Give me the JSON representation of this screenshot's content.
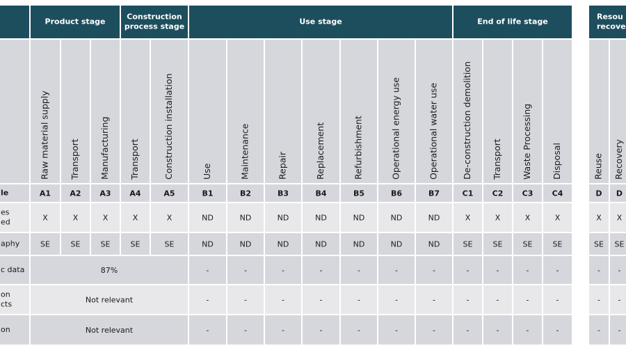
{
  "row_labels": {
    "code": [
      "le"
    ],
    "declared": [
      "es",
      "ed"
    ],
    "geography": [
      "aphy"
    ],
    "specific": [
      "c data"
    ],
    "products": [
      "on",
      "cts"
    ],
    "sites": [
      "on"
    ]
  },
  "groups": [
    {
      "title": [
        "Product stage"
      ],
      "columns": [
        {
          "name": "Raw material supply",
          "code": "A1",
          "declared": "X",
          "geography": "SE"
        },
        {
          "name": "Transport",
          "code": "A2",
          "declared": "X",
          "geography": "SE"
        },
        {
          "name": "Manufacturing",
          "code": "A3",
          "declared": "X",
          "geography": "SE"
        }
      ]
    },
    {
      "title": [
        "Construction",
        "process stage"
      ],
      "columns": [
        {
          "name": "Transport",
          "code": "A4",
          "declared": "X",
          "geography": "SE"
        },
        {
          "name": "Construction installation",
          "code": "A5",
          "declared": "X",
          "geography": "SE"
        }
      ]
    },
    {
      "title": [
        "Use stage"
      ],
      "columns": [
        {
          "name": "Use",
          "code": "B1",
          "declared": "ND",
          "geography": "ND"
        },
        {
          "name": "Maintenance",
          "code": "B2",
          "declared": "ND",
          "geography": "ND"
        },
        {
          "name": "Repair",
          "code": "B3",
          "declared": "ND",
          "geography": "ND"
        },
        {
          "name": "Replacement",
          "code": "B4",
          "declared": "ND",
          "geography": "ND"
        },
        {
          "name": "Refurbishment",
          "code": "B5",
          "declared": "ND",
          "geography": "ND"
        },
        {
          "name": "Operational energy use",
          "code": "B6",
          "declared": "ND",
          "geography": "ND"
        },
        {
          "name": "Operational water use",
          "code": "B7",
          "declared": "ND",
          "geography": "ND"
        }
      ]
    },
    {
      "title": [
        "End of life stage"
      ],
      "columns": [
        {
          "name": "De-construction demolition",
          "code": "C1",
          "declared": "X",
          "geography": "SE"
        },
        {
          "name": "Transport",
          "code": "C2",
          "declared": "X",
          "geography": "SE"
        },
        {
          "name": "Waste Processing",
          "code": "C3",
          "declared": "X",
          "geography": "SE"
        },
        {
          "name": "Disposal",
          "code": "C4",
          "declared": "X",
          "geography": "SE"
        }
      ]
    },
    {
      "title": [
        "Resou",
        "recovery"
      ],
      "columns": [
        {
          "name": "Reuse",
          "code": "D",
          "declared": "X",
          "geography": "SE"
        },
        {
          "name": "Recovery",
          "code": "D",
          "declared": "X",
          "geography": "SE"
        }
      ]
    }
  ],
  "merged_rows": {
    "specific": {
      "merged": "87%",
      "cells": [
        "-",
        "-",
        "-",
        "-",
        "-",
        "-",
        "-",
        "-",
        "-",
        "-",
        "-",
        "-",
        "-"
      ]
    },
    "products": {
      "merged": "Not relevant",
      "cells": [
        "-",
        "-",
        "-",
        "-",
        "-",
        "-",
        "-",
        "-",
        "-",
        "-",
        "-",
        "-",
        "-"
      ]
    },
    "sites": {
      "merged": "Not relevant",
      "cells": [
        "-",
        "-",
        "-",
        "-",
        "-",
        "-",
        "-",
        "-",
        "-",
        "-",
        "-",
        "-",
        "-"
      ]
    }
  }
}
